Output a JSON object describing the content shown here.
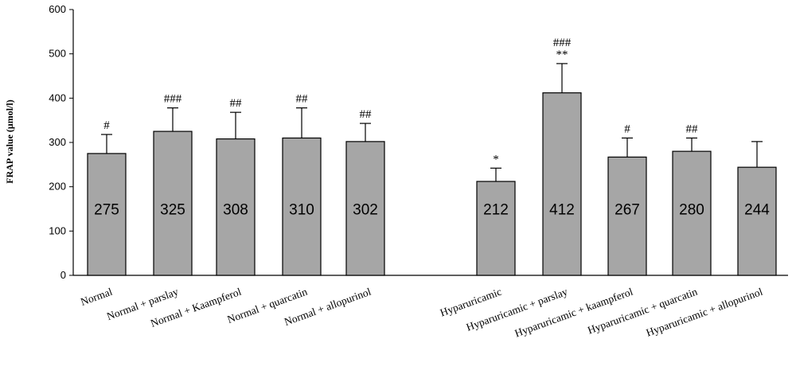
{
  "chart_data": {
    "type": "bar",
    "title": "",
    "xlabel": "",
    "ylabel": "FRAP value (μmol/l)",
    "ylim": [
      0,
      600
    ],
    "yticks": [
      0,
      100,
      200,
      300,
      400,
      500,
      600
    ],
    "yticks_text": [
      "0",
      "100",
      "200",
      "300",
      "400",
      "500",
      "600"
    ],
    "grid": false,
    "bar_color": "#a6a6a6",
    "categories": [
      "Normal",
      "Normal +  parslay",
      "Normal + Kaampferol",
      "Normal + quarcatin",
      "Normal + allopurinol",
      "Hyparuricamic",
      "Hyparuricamic + parslay",
      "Hyparuricamic + kaampferol",
      "Hyparuricamic + quarcatin",
      "Hyparuricamic + allopurinol"
    ],
    "values": [
      275,
      325,
      308,
      310,
      302,
      212,
      412,
      267,
      280,
      244
    ],
    "value_labels": [
      "275",
      "325",
      "308",
      "310",
      "302",
      "212",
      "412",
      "267",
      "280",
      "244"
    ],
    "error_upper": [
      318,
      378,
      368,
      378,
      343,
      242,
      478,
      310,
      310,
      302
    ],
    "significance": [
      "#",
      "###",
      "##",
      "##",
      "##",
      "*",
      "###\n**",
      "#",
      "##",
      ""
    ]
  }
}
